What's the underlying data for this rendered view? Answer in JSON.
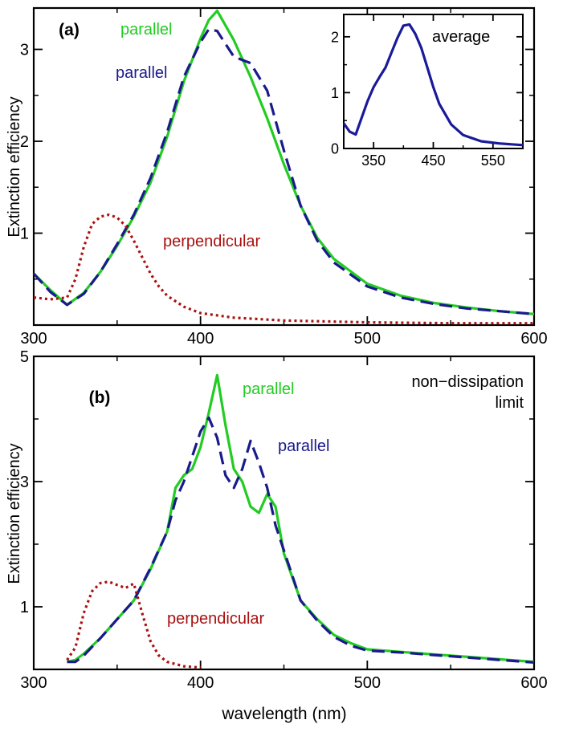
{
  "figure": {
    "xlabel": "wavelength (nm)"
  },
  "chart_data": [
    {
      "type": "line",
      "panel_label": "(a)",
      "xlabel": "",
      "ylabel": "Extinction efficiency",
      "xlim": [
        300,
        600
      ],
      "ylim": [
        0,
        3.45
      ],
      "xticks": [
        300,
        400,
        500,
        600
      ],
      "yticks": [
        1,
        2,
        3
      ],
      "series": [
        {
          "name": "parallel",
          "color": "#22cc22",
          "style": "solid",
          "x": [
            300,
            310,
            320,
            330,
            340,
            350,
            360,
            370,
            380,
            390,
            400,
            405,
            410,
            420,
            430,
            440,
            450,
            460,
            470,
            480,
            500,
            520,
            540,
            560,
            580,
            600
          ],
          "y": [
            0.56,
            0.38,
            0.22,
            0.35,
            0.58,
            0.86,
            1.18,
            1.55,
            2.05,
            2.65,
            3.12,
            3.32,
            3.42,
            3.1,
            2.7,
            2.25,
            1.75,
            1.3,
            0.95,
            0.72,
            0.45,
            0.32,
            0.24,
            0.19,
            0.15,
            0.12
          ]
        },
        {
          "name": "parallel",
          "color": "#1a1a8c",
          "style": "dashed",
          "x": [
            300,
            310,
            320,
            330,
            340,
            350,
            360,
            370,
            380,
            390,
            400,
            405,
            410,
            420,
            430,
            440,
            450,
            460,
            470,
            480,
            500,
            520,
            540,
            560,
            580,
            600
          ],
          "y": [
            0.56,
            0.36,
            0.22,
            0.34,
            0.58,
            0.88,
            1.2,
            1.6,
            2.1,
            2.7,
            3.08,
            3.22,
            3.2,
            2.92,
            2.85,
            2.55,
            1.9,
            1.3,
            0.92,
            0.68,
            0.42,
            0.3,
            0.23,
            0.18,
            0.15,
            0.12
          ]
        },
        {
          "name": "perpendicular",
          "color": "#aa1111",
          "style": "dotted",
          "x": [
            300,
            310,
            320,
            325,
            330,
            335,
            340,
            345,
            350,
            355,
            360,
            365,
            370,
            375,
            380,
            390,
            400,
            420,
            450,
            500,
            550,
            600
          ],
          "y": [
            0.3,
            0.28,
            0.3,
            0.5,
            0.85,
            1.1,
            1.18,
            1.2,
            1.17,
            1.08,
            0.92,
            0.74,
            0.56,
            0.42,
            0.32,
            0.2,
            0.13,
            0.08,
            0.05,
            0.03,
            0.02,
            0.02
          ]
        }
      ],
      "annotations": [
        {
          "text": "parallel",
          "color": "#22cc22"
        },
        {
          "text": "parallel",
          "color": "#1a1a8c"
        },
        {
          "text": "perpendicular",
          "color": "#aa1111"
        }
      ],
      "inset": {
        "label": "average",
        "xlim": [
          300,
          600
        ],
        "ylim": [
          0,
          2.4
        ],
        "xticks": [
          350,
          450,
          550
        ],
        "yticks": [
          0,
          1,
          2
        ],
        "series": [
          {
            "name": "average",
            "color": "#1a1a9a",
            "style": "solid",
            "x": [
              300,
              310,
              320,
              330,
              340,
              350,
              360,
              370,
              380,
              390,
              400,
              410,
              420,
              430,
              440,
              450,
              460,
              480,
              500,
              530,
              560,
              600
            ],
            "y": [
              0.45,
              0.3,
              0.25,
              0.55,
              0.85,
              1.1,
              1.28,
              1.45,
              1.72,
              1.98,
              2.2,
              2.22,
              2.05,
              1.8,
              1.45,
              1.1,
              0.8,
              0.43,
              0.24,
              0.13,
              0.09,
              0.06
            ]
          }
        ]
      }
    },
    {
      "type": "line",
      "panel_label": "(b)",
      "xlabel": "wavelength (nm)",
      "ylabel": "Extinction efficiency",
      "xlim": [
        300,
        600
      ],
      "ylim": [
        0,
        5
      ],
      "xticks": [
        300,
        400,
        500,
        600
      ],
      "yticks": [
        1,
        3,
        5
      ],
      "note": "non-dissipation limit",
      "series": [
        {
          "name": "parallel",
          "color": "#22cc22",
          "style": "solid",
          "x": [
            320,
            325,
            330,
            340,
            350,
            360,
            370,
            380,
            385,
            390,
            395,
            400,
            405,
            410,
            415,
            420,
            425,
            430,
            435,
            440,
            445,
            450,
            460,
            470,
            480,
            490,
            500,
            520,
            540,
            560,
            580,
            600
          ],
          "y": [
            0.12,
            0.15,
            0.25,
            0.5,
            0.8,
            1.1,
            1.6,
            2.2,
            2.9,
            3.1,
            3.2,
            3.55,
            4.1,
            4.7,
            3.9,
            3.2,
            3.0,
            2.6,
            2.5,
            2.8,
            2.6,
            1.85,
            1.1,
            0.8,
            0.55,
            0.42,
            0.32,
            0.28,
            0.24,
            0.2,
            0.16,
            0.12
          ]
        },
        {
          "name": "parallel",
          "color": "#1a1a8c",
          "style": "dashed",
          "x": [
            320,
            325,
            330,
            340,
            350,
            360,
            370,
            380,
            385,
            390,
            395,
            400,
            405,
            410,
            415,
            420,
            425,
            430,
            435,
            440,
            445,
            450,
            460,
            470,
            480,
            490,
            500,
            520,
            540,
            560,
            580,
            600
          ],
          "y": [
            0.12,
            0.12,
            0.22,
            0.5,
            0.8,
            1.1,
            1.62,
            2.2,
            2.7,
            3.0,
            3.4,
            3.8,
            4.02,
            3.7,
            3.1,
            2.9,
            3.2,
            3.65,
            3.3,
            2.9,
            2.3,
            1.9,
            1.1,
            0.78,
            0.52,
            0.38,
            0.3,
            0.27,
            0.23,
            0.19,
            0.15,
            0.11
          ]
        },
        {
          "name": "perpendicular",
          "color": "#aa1111",
          "style": "dotted",
          "x": [
            320,
            325,
            330,
            335,
            340,
            345,
            350,
            355,
            360,
            365,
            370,
            375,
            380,
            390,
            400
          ],
          "y": [
            0.15,
            0.35,
            0.9,
            1.25,
            1.38,
            1.4,
            1.35,
            1.3,
            1.37,
            0.9,
            0.45,
            0.22,
            0.12,
            0.05,
            0.03
          ]
        }
      ],
      "annotations": [
        {
          "text": "parallel",
          "color": "#22cc22"
        },
        {
          "text": "parallel",
          "color": "#1a1a8c"
        },
        {
          "text": "perpendicular",
          "color": "#aa1111"
        },
        {
          "text": "non−dissipation"
        },
        {
          "text": "limit"
        }
      ]
    }
  ]
}
